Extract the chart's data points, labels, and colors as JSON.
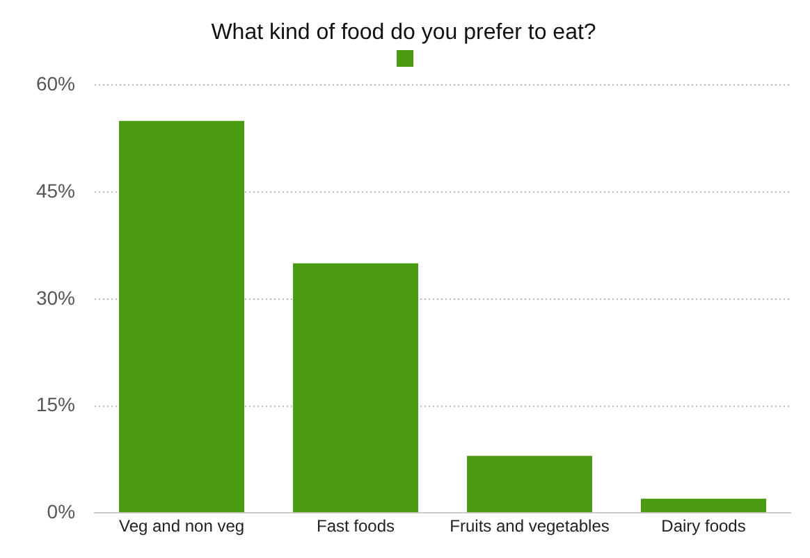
{
  "chart_data": {
    "type": "bar",
    "title": "What kind of food do you prefer to eat?",
    "categories": [
      "Veg and non veg",
      "Fast foods",
      "Fruits and vegetables",
      "Dairy foods"
    ],
    "series": [
      {
        "color": "#4a9a12",
        "values": [
          55,
          35,
          8,
          2
        ]
      }
    ],
    "ylim": [
      0,
      60
    ],
    "yticks": [
      {
        "value": 0,
        "label": "0%"
      },
      {
        "value": 15,
        "label": "15%"
      },
      {
        "value": 30,
        "label": "30%"
      },
      {
        "value": 45,
        "label": "45%"
      },
      {
        "value": 60,
        "label": "60%"
      }
    ],
    "grid": "y"
  }
}
